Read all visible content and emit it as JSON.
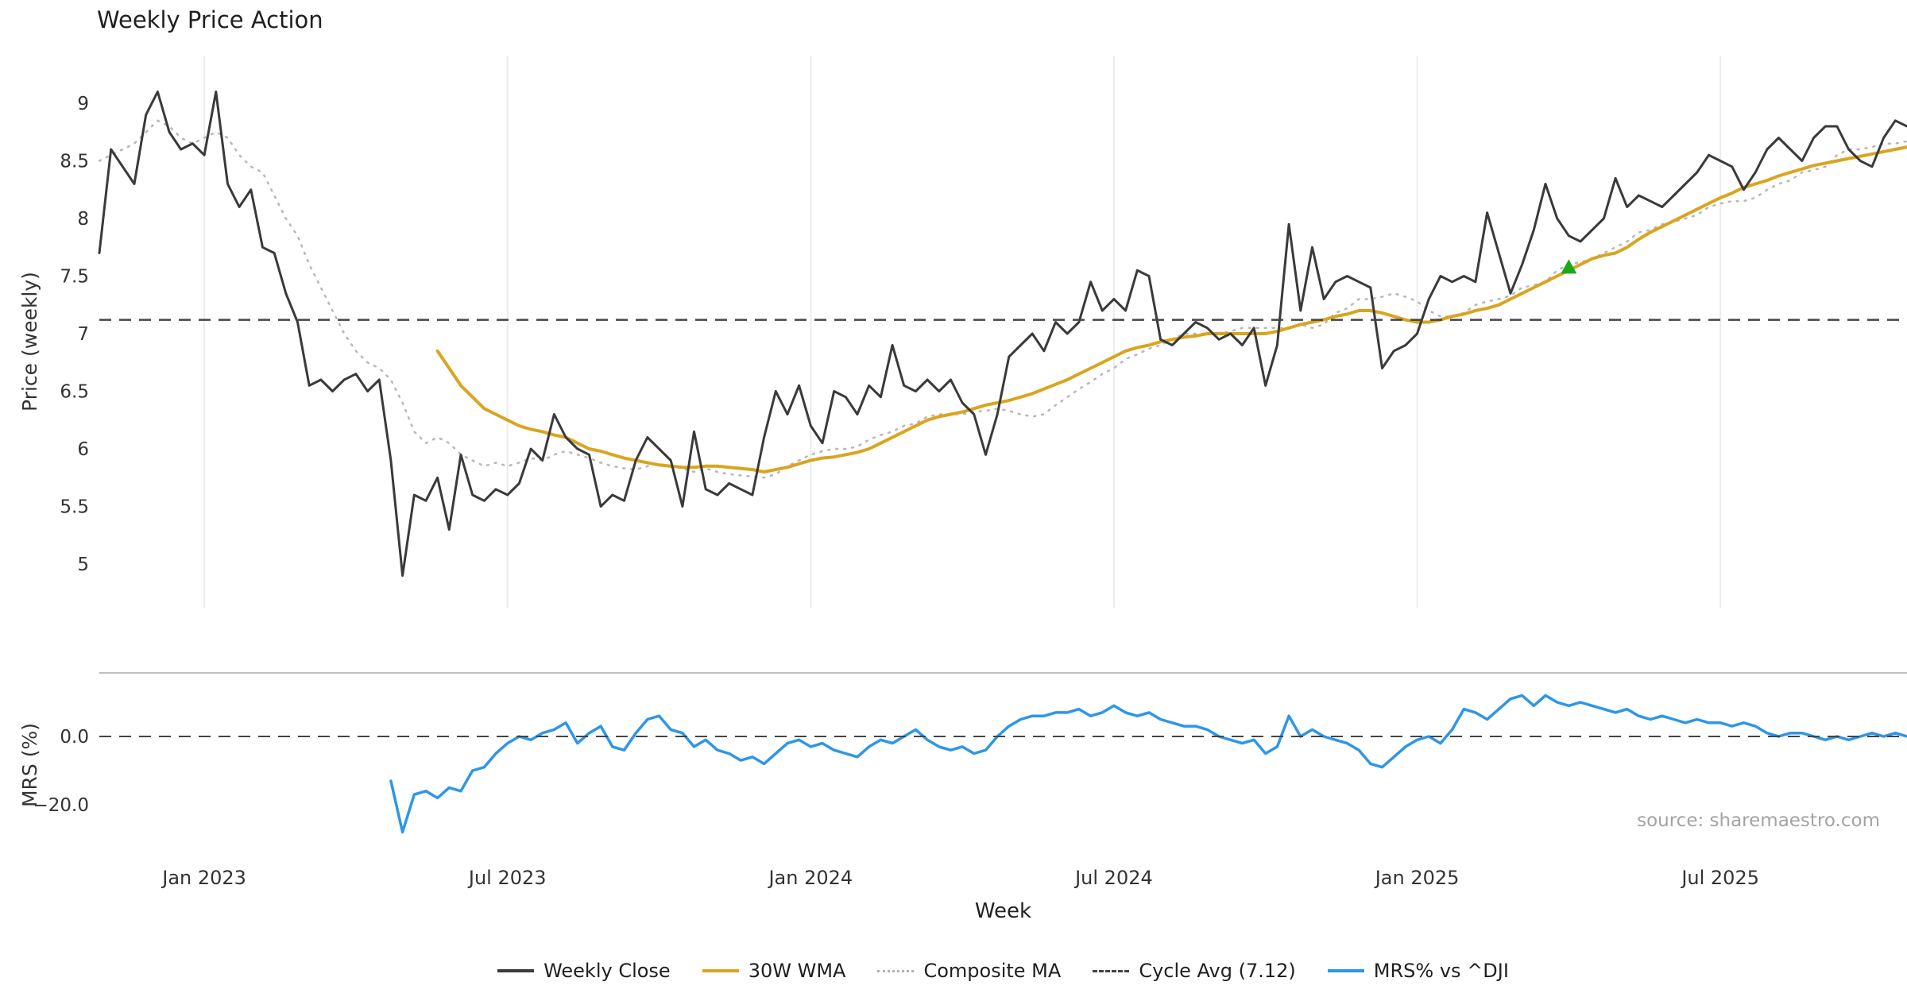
{
  "title": "Weekly Price Action",
  "source": "source: sharemaestro.com",
  "axes": {
    "price": {
      "label": "Price (weekly)",
      "ticks": [
        {
          "label": "9",
          "value": 9
        },
        {
          "label": "8.5",
          "value": 8.5
        },
        {
          "label": "8",
          "value": 8
        },
        {
          "label": "7.5",
          "value": 7.5
        },
        {
          "label": "7",
          "value": 7
        },
        {
          "label": "6.5",
          "value": 6.5
        },
        {
          "label": "6",
          "value": 6
        },
        {
          "label": "5.5",
          "value": 5.5
        },
        {
          "label": "5",
          "value": 5
        }
      ]
    },
    "mrs": {
      "label": "MRS (%)",
      "ticks": [
        {
          "label": "0.0",
          "value": 0
        },
        {
          "label": "−20.0",
          "value": -20
        }
      ]
    },
    "x": {
      "label": "Week",
      "ticks": [
        {
          "label": "Jan 2023",
          "week": 9
        },
        {
          "label": "Jul 2023",
          "week": 35
        },
        {
          "label": "Jan 2024",
          "week": 61
        },
        {
          "label": "Jul 2024",
          "week": 87
        },
        {
          "label": "Jan 2025",
          "week": 113
        },
        {
          "label": "Jul 2025",
          "week": 139
        }
      ]
    }
  },
  "legend": {
    "items": [
      {
        "label": "Weekly Close",
        "color": "#3a3a3a",
        "style": "solid"
      },
      {
        "label": "30W WMA",
        "color": "#d9a520",
        "style": "solid"
      },
      {
        "label": "Composite MA",
        "color": "#b0b0b0",
        "style": "dotted"
      },
      {
        "label": "Cycle Avg (7.12)",
        "color": "#444444",
        "style": "dashed"
      },
      {
        "label": "MRS% vs ^DJI",
        "color": "#2e96e8",
        "style": "solid"
      }
    ]
  },
  "chart_data": {
    "type": "line",
    "title": "Weekly Price Action",
    "xlabel": "Week",
    "x_unit": "week_index",
    "n_weeks": 156,
    "grid": "vertical-only",
    "legend_position": "bottom-center",
    "xticks": [
      {
        "label": "Jan 2023",
        "week": 9
      },
      {
        "label": "Jul 2023",
        "week": 35
      },
      {
        "label": "Jan 2024",
        "week": 61
      },
      {
        "label": "Jul 2024",
        "week": 87
      },
      {
        "label": "Jan 2025",
        "week": 113
      },
      {
        "label": "Jul 2025",
        "week": 139
      }
    ],
    "panels": [
      {
        "name": "price",
        "ylabel": "Price (weekly)",
        "ylim": [
          4.6,
          9.4
        ],
        "series": [
          {
            "name": "Composite MA",
            "color": "#b8b8b8",
            "style": "dotted",
            "lw": 2.5,
            "start": 0,
            "values": [
              8.5,
              8.55,
              8.6,
              8.65,
              8.75,
              8.85,
              8.8,
              8.7,
              8.65,
              8.7,
              8.75,
              8.7,
              8.55,
              8.45,
              8.4,
              8.2,
              8.0,
              7.85,
              7.6,
              7.4,
              7.2,
              7.0,
              6.85,
              6.75,
              6.7,
              6.6,
              6.4,
              6.15,
              6.05,
              6.1,
              6.05,
              5.95,
              5.9,
              5.85,
              5.88,
              5.85,
              5.88,
              5.92,
              5.9,
              5.95,
              5.98,
              5.95,
              5.92,
              5.88,
              5.85,
              5.83,
              5.82,
              5.85,
              5.87,
              5.85,
              5.83,
              5.8,
              5.83,
              5.8,
              5.78,
              5.77,
              5.76,
              5.75,
              5.78,
              5.85,
              5.9,
              5.95,
              5.98,
              6.0,
              6.0,
              6.02,
              6.08,
              6.12,
              6.15,
              6.2,
              6.22,
              6.28,
              6.3,
              6.3,
              6.3,
              6.32,
              6.33,
              6.35,
              6.33,
              6.3,
              6.28,
              6.3,
              6.38,
              6.45,
              6.52,
              6.58,
              6.65,
              6.7,
              6.78,
              6.82,
              6.87,
              6.9,
              6.95,
              7.0,
              7.0,
              7.0,
              7.0,
              7.02,
              7.05,
              7.05,
              7.05,
              7.05,
              7.05,
              7.08,
              7.05,
              7.08,
              7.18,
              7.22,
              7.3,
              7.3,
              7.32,
              7.35,
              7.32,
              7.28,
              7.2,
              7.15,
              7.15,
              7.18,
              7.25,
              7.28,
              7.3,
              7.33,
              7.4,
              7.42,
              7.45,
              7.55,
              7.6,
              7.62,
              7.65,
              7.7,
              7.75,
              7.8,
              7.88,
              7.9,
              7.95,
              7.97,
              8.0,
              8.03,
              8.1,
              8.13,
              8.15,
              8.15,
              8.18,
              8.25,
              8.3,
              8.33,
              8.4,
              8.42,
              8.45,
              8.55,
              8.6,
              8.6,
              8.62,
              8.65,
              8.65,
              8.67
            ]
          },
          {
            "name": "30W WMA",
            "color": "#d9a520",
            "style": "solid",
            "lw": 4,
            "start": 29,
            "values": [
              6.85,
              6.7,
              6.55,
              6.45,
              6.35,
              6.3,
              6.25,
              6.2,
              6.17,
              6.15,
              6.12,
              6.1,
              6.05,
              6.0,
              5.98,
              5.95,
              5.92,
              5.9,
              5.88,
              5.86,
              5.85,
              5.84,
              5.84,
              5.85,
              5.85,
              5.84,
              5.83,
              5.82,
              5.8,
              5.82,
              5.84,
              5.87,
              5.9,
              5.92,
              5.93,
              5.95,
              5.97,
              6.0,
              6.05,
              6.1,
              6.15,
              6.2,
              6.25,
              6.28,
              6.3,
              6.32,
              6.35,
              6.38,
              6.4,
              6.42,
              6.45,
              6.48,
              6.52,
              6.56,
              6.6,
              6.65,
              6.7,
              6.75,
              6.8,
              6.85,
              6.88,
              6.9,
              6.93,
              6.95,
              6.97,
              6.98,
              7.0,
              7.0,
              7.0,
              7.0,
              7.0,
              7.0,
              7.02,
              7.05,
              7.08,
              7.1,
              7.12,
              7.15,
              7.17,
              7.2,
              7.2,
              7.18,
              7.15,
              7.12,
              7.1,
              7.1,
              7.12,
              7.15,
              7.17,
              7.2,
              7.22,
              7.25,
              7.3,
              7.35,
              7.4,
              7.45,
              7.5,
              7.55,
              7.6,
              7.65,
              7.68,
              7.7,
              7.75,
              7.82,
              7.88,
              7.93,
              7.98,
              8.03,
              8.08,
              8.13,
              8.18,
              8.22,
              8.27,
              8.3,
              8.33,
              8.37,
              8.4,
              8.43,
              8.46,
              8.48,
              8.5,
              8.52,
              8.54,
              8.56,
              8.58,
              8.6,
              8.62
            ]
          },
          {
            "name": "Weekly Close",
            "color": "#3a3a3a",
            "style": "solid",
            "lw": 3,
            "start": 0,
            "values": [
              7.7,
              8.6,
              8.45,
              8.3,
              8.9,
              9.1,
              8.75,
              8.6,
              8.65,
              8.55,
              9.1,
              8.3,
              8.1,
              8.25,
              7.75,
              7.7,
              7.35,
              7.1,
              6.55,
              6.6,
              6.5,
              6.6,
              6.65,
              6.5,
              6.6,
              5.9,
              4.9,
              5.6,
              5.55,
              5.75,
              5.3,
              5.95,
              5.6,
              5.55,
              5.65,
              5.6,
              5.7,
              6.0,
              5.9,
              6.3,
              6.1,
              6.0,
              5.95,
              5.5,
              5.6,
              5.55,
              5.9,
              6.1,
              6.0,
              5.9,
              5.5,
              6.15,
              5.65,
              5.6,
              5.7,
              5.65,
              5.6,
              6.1,
              6.5,
              6.3,
              6.55,
              6.2,
              6.05,
              6.5,
              6.45,
              6.3,
              6.55,
              6.45,
              6.9,
              6.55,
              6.5,
              6.6,
              6.5,
              6.6,
              6.4,
              6.3,
              5.95,
              6.3,
              6.8,
              6.9,
              7.0,
              6.85,
              7.1,
              7.0,
              7.1,
              7.45,
              7.2,
              7.3,
              7.2,
              7.55,
              7.5,
              6.95,
              6.9,
              7.0,
              7.1,
              7.05,
              6.95,
              7.0,
              6.9,
              7.05,
              6.55,
              6.9,
              7.95,
              7.2,
              7.75,
              7.3,
              7.45,
              7.5,
              7.45,
              7.4,
              6.7,
              6.85,
              6.9,
              7.0,
              7.3,
              7.5,
              7.45,
              7.5,
              7.45,
              8.05,
              7.7,
              7.35,
              7.6,
              7.9,
              8.3,
              8.0,
              7.85,
              7.8,
              7.9,
              8.0,
              8.35,
              8.1,
              8.2,
              8.15,
              8.1,
              8.2,
              8.3,
              8.4,
              8.55,
              8.5,
              8.45,
              8.25,
              8.4,
              8.6,
              8.7,
              8.6,
              8.5,
              8.7,
              8.8,
              8.8,
              8.6,
              8.5,
              8.45,
              8.7,
              8.85,
              8.8
            ]
          },
          {
            "name": "Cycle Avg",
            "type": "hline",
            "value": 7.12,
            "color": "#444444",
            "style": "dashed",
            "lw": 2.5
          }
        ],
        "markers": [
          {
            "week": 126,
            "value": 7.57,
            "shape": "triangle-up",
            "color": "#1ca81c",
            "meaning": "signal-marker"
          }
        ]
      },
      {
        "name": "mrs",
        "ylabel": "MRS (%)",
        "ylim": [
          -34,
          18
        ],
        "series": [
          {
            "name": "MRS% vs ^DJI",
            "color": "#2e96e8",
            "style": "solid",
            "lw": 3.5,
            "start": 25,
            "values": [
              -13,
              -28,
              -17,
              -16,
              -18,
              -15,
              -16,
              -10,
              -9,
              -5,
              -2,
              0,
              -1,
              1,
              2,
              4,
              -2,
              1,
              3,
              -3,
              -4,
              1,
              5,
              6,
              2,
              1,
              -3,
              -1,
              -4,
              -5,
              -7,
              -6,
              -8,
              -5,
              -2,
              -1,
              -3,
              -2,
              -4,
              -5,
              -6,
              -3,
              -1,
              -2,
              0,
              2,
              -1,
              -3,
              -4,
              -3,
              -5,
              -4,
              0,
              3,
              5,
              6,
              6,
              7,
              7,
              8,
              6,
              7,
              9,
              7,
              6,
              7,
              5,
              4,
              3,
              3,
              2,
              0,
              -1,
              -2,
              -1,
              -5,
              -3,
              6,
              0,
              2,
              0,
              -1,
              -2,
              -4,
              -8,
              -9,
              -6,
              -3,
              -1,
              0,
              -2,
              2,
              8,
              7,
              5,
              8,
              11,
              12,
              9,
              12,
              10,
              9,
              10,
              9,
              8,
              7,
              8,
              6,
              5,
              6,
              5,
              4,
              5,
              4,
              4,
              3,
              4,
              3,
              1,
              0,
              1,
              1,
              0,
              -1,
              0,
              -1,
              0,
              1,
              0,
              1,
              0
            ]
          },
          {
            "name": "Zero Line",
            "type": "hline",
            "value": 0,
            "color": "#444444",
            "style": "dashed",
            "lw": 2
          }
        ]
      }
    ]
  }
}
